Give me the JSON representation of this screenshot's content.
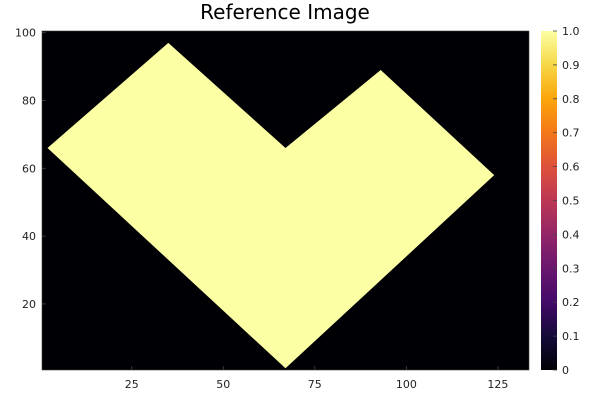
{
  "chart_data": {
    "type": "heatmap",
    "title": "Reference Image",
    "xlabel": "",
    "ylabel": "",
    "grid": false,
    "xlim": [
      0.5,
      133.5
    ],
    "ylim": [
      0.5,
      100.5
    ],
    "x_ticks": [
      25,
      50,
      75,
      100,
      125
    ],
    "y_ticks": [
      20,
      40,
      60,
      80,
      100
    ],
    "colorbar": {
      "colormap": "inferno",
      "range": [
        0,
        1
      ],
      "ticks": [
        "0",
        "0.1",
        "0.2",
        "0.3",
        "0.4",
        "0.5",
        "0.6",
        "0.7",
        "0.8",
        "0.9",
        "1.0"
      ]
    },
    "background_value": 0,
    "region_value": 1,
    "region_outline": [
      [
        2,
        66
      ],
      [
        35,
        97
      ],
      [
        67,
        66
      ],
      [
        93,
        89
      ],
      [
        124,
        58
      ],
      [
        67,
        1
      ]
    ],
    "colors": {
      "background": "#000004",
      "region": "#fcffa4"
    }
  }
}
